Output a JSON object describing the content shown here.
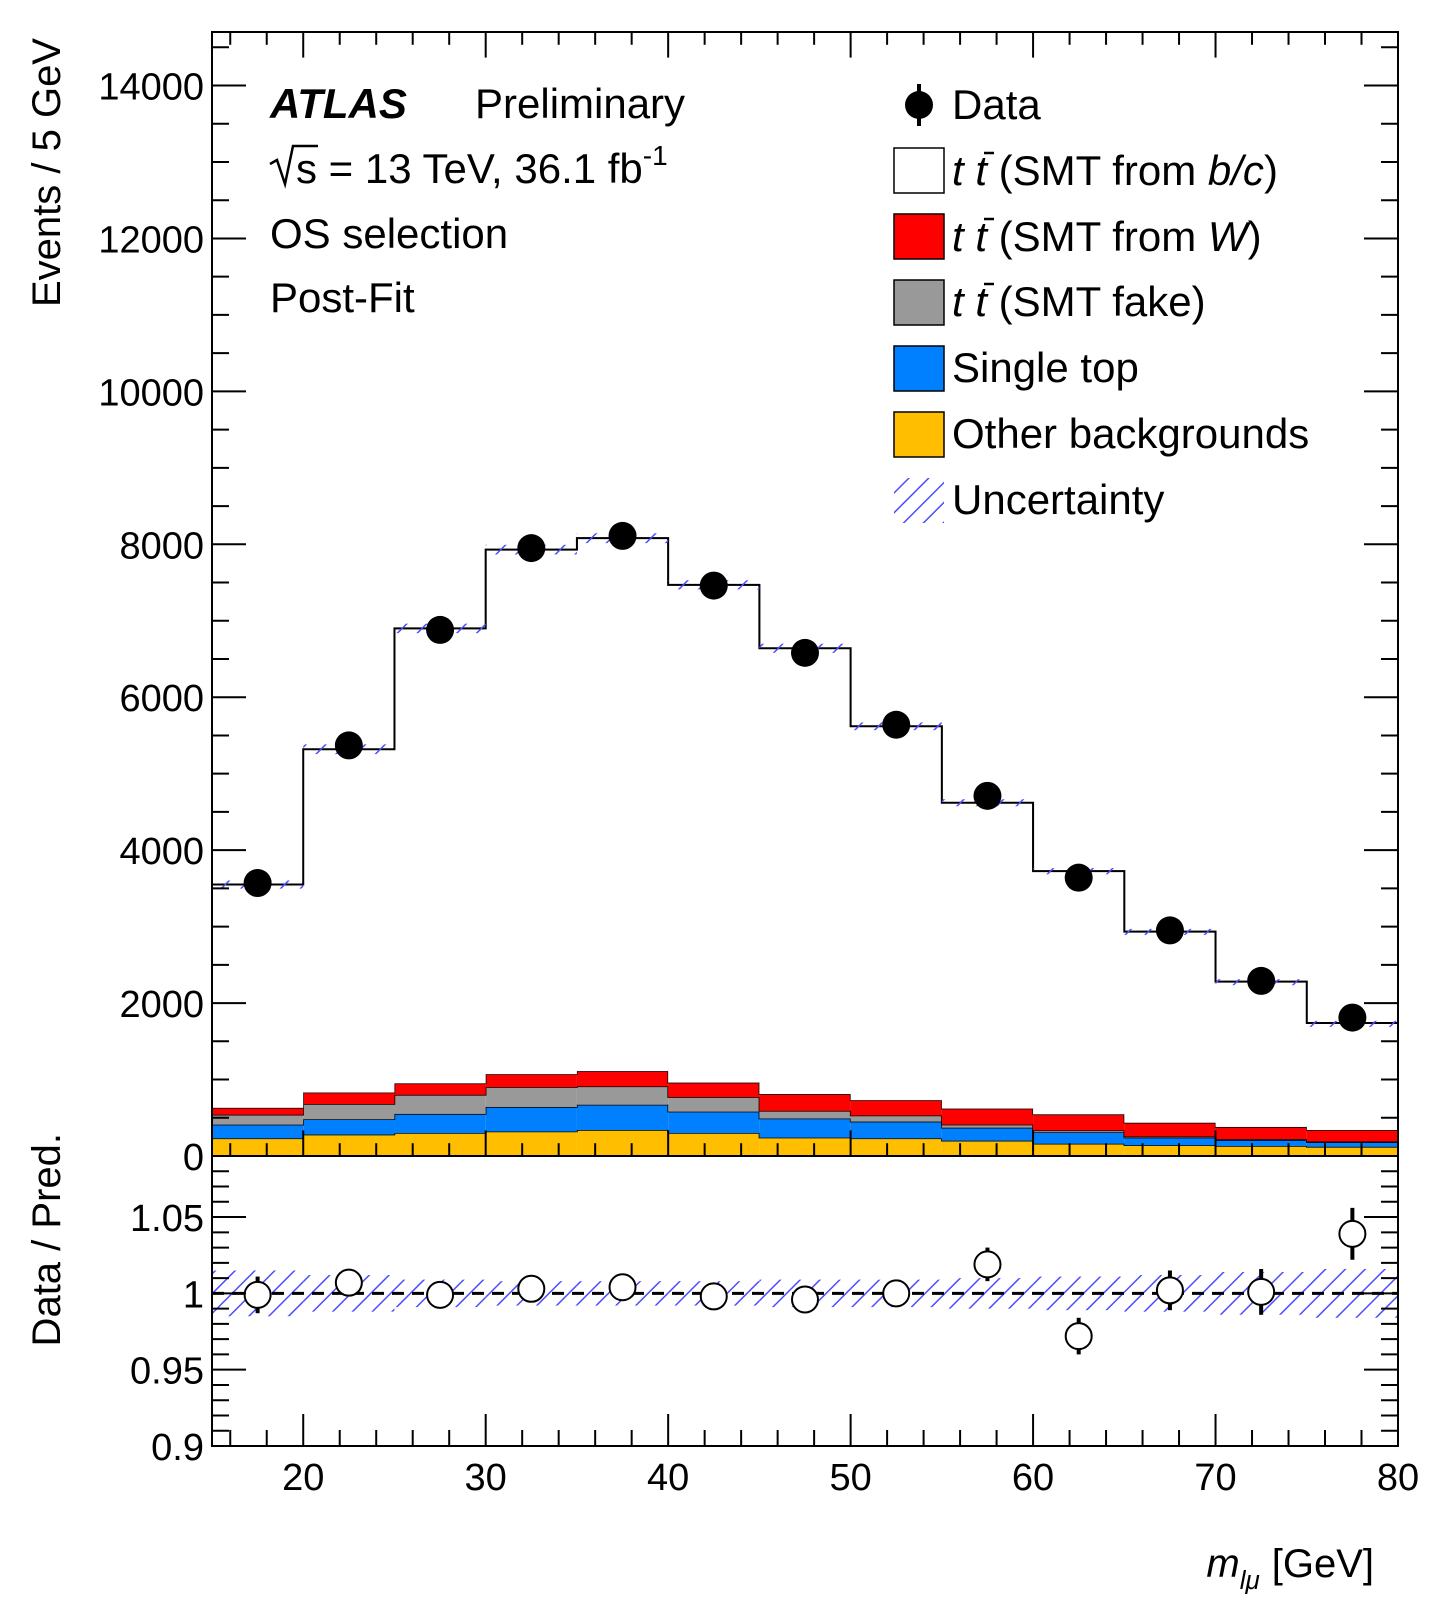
{
  "chart_data": {
    "type": "bar",
    "stacked": true,
    "experiment": "ATLAS",
    "status": "Preliminary",
    "energy_prefix": "s",
    "energy_text": " = 13 TeV, 36.1 fb",
    "energy_sup": "-1",
    "selection": "OS selection",
    "fit_stage": "Post-Fit",
    "xlabel_symbol": "m",
    "xlabel_subscript": "lμ",
    "xlabel_unit": "[GeV]",
    "ylabel": "Events / 5 GeV",
    "ratio_ylabel": "Data / Pred.",
    "xlim": [
      15,
      80
    ],
    "ylim": [
      0,
      14700
    ],
    "ratio_ylim": [
      0.9,
      1.09
    ],
    "x_ticks": [
      "20",
      "30",
      "40",
      "50",
      "60",
      "70",
      "80"
    ],
    "y_ticks": [
      "0",
      "2000",
      "4000",
      "6000",
      "8000",
      "10000",
      "12000",
      "14000"
    ],
    "ratio_ticks": [
      "0.9",
      "0.95",
      "1",
      "1.05"
    ],
    "bin_edges": [
      15,
      20,
      25,
      30,
      35,
      40,
      45,
      50,
      55,
      60,
      65,
      70,
      75,
      80
    ],
    "bin_centers": [
      17.5,
      22.5,
      27.5,
      32.5,
      37.5,
      42.5,
      47.5,
      52.5,
      57.5,
      62.5,
      67.5,
      72.5,
      77.5
    ],
    "series": [
      {
        "name": "Other backgrounds",
        "color": "#ffbf00",
        "values": [
          230,
          280,
          300,
          320,
          340,
          300,
          240,
          230,
          200,
          160,
          140,
          130,
          120
        ]
      },
      {
        "name": "Single top",
        "color": "#007fff",
        "values": [
          180,
          200,
          250,
          320,
          330,
          280,
          250,
          220,
          170,
          150,
          100,
          80,
          60
        ]
      },
      {
        "name": "t t̄ (SMT fake)",
        "color": "#999999",
        "values": [
          130,
          200,
          250,
          260,
          240,
          190,
          100,
          80,
          40,
          25,
          15,
          10,
          10
        ]
      },
      {
        "name": "t t̄ (SMT from W)",
        "color": "#ff0000",
        "values": [
          90,
          150,
          150,
          170,
          200,
          190,
          220,
          200,
          210,
          210,
          180,
          160,
          150
        ]
      },
      {
        "name": "t t̄ (SMT from b/c)",
        "color": "#ffffff",
        "values": [
          2920,
          4490,
          5950,
          6860,
          6970,
          6510,
          5830,
          4890,
          4000,
          3180,
          2500,
          1900,
          1400
        ]
      }
    ],
    "total_prediction": [
      3550,
      5320,
      6900,
      7930,
      8080,
      7470,
      6640,
      5620,
      4620,
      3725,
      2935,
      2280,
      1740
    ],
    "data": {
      "name": "Data",
      "values": [
        3570,
        5370,
        6880,
        7950,
        8110,
        7460,
        6580,
        5640,
        4710,
        3640,
        2950,
        2290,
        1810
      ]
    },
    "ratio": {
      "values": [
        0.999,
        1.007,
        0.999,
        1.003,
        1.004,
        0.998,
        0.996,
        1.0,
        1.019,
        0.972,
        1.002,
        1.001,
        1.039
      ],
      "errors": [
        0.012,
        0.009,
        0.008,
        0.007,
        0.007,
        0.007,
        0.008,
        0.009,
        0.011,
        0.012,
        0.013,
        0.015,
        0.017
      ]
    },
    "uncertainty": {
      "name": "Uncertainty",
      "color": "#4040ff",
      "ratio_band": [
        0.015,
        0.012,
        0.009,
        0.008,
        0.008,
        0.008,
        0.009,
        0.009,
        0.01,
        0.011,
        0.012,
        0.014,
        0.016
      ]
    },
    "legend_position": "top-right",
    "legend": [
      {
        "label": "Data"
      },
      {
        "label_pre": "",
        "label_post": " (SMT from ",
        "label_it": "b/c",
        "label_end": ")",
        "color": "#ffffff"
      },
      {
        "label_pre": "",
        "label_post": " (SMT from ",
        "label_it": "W",
        "label_end": ")",
        "color": "#ff0000"
      },
      {
        "label_post": " (SMT fake)",
        "color": "#999999"
      },
      {
        "label": "Single top",
        "color": "#007fff"
      },
      {
        "label": "Other backgrounds",
        "color": "#ffbf00"
      },
      {
        "label": "Uncertainty",
        "color": "#4040ff"
      }
    ]
  }
}
